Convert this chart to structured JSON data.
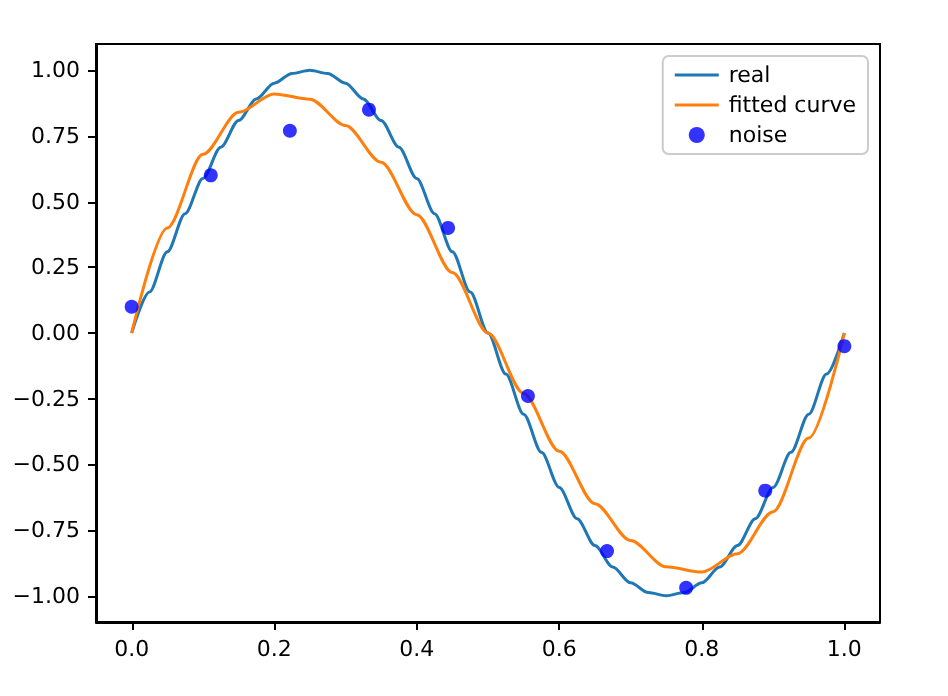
{
  "chart_data": {
    "type": "line",
    "series": [
      {
        "name": "real",
        "color": "#1f77b4",
        "x": [
          0,
          0.025,
          0.05,
          0.075,
          0.1,
          0.125,
          0.15,
          0.175,
          0.2,
          0.225,
          0.25,
          0.275,
          0.3,
          0.325,
          0.35,
          0.375,
          0.4,
          0.425,
          0.45,
          0.475,
          0.5,
          0.525,
          0.55,
          0.575,
          0.6,
          0.625,
          0.65,
          0.675,
          0.7,
          0.725,
          0.75,
          0.775,
          0.8,
          0.825,
          0.85,
          0.875,
          0.9,
          0.925,
          0.95,
          0.975,
          1
        ],
        "values": [
          0,
          0.156,
          0.309,
          0.454,
          0.588,
          0.707,
          0.809,
          0.891,
          0.951,
          0.988,
          1,
          0.988,
          0.951,
          0.891,
          0.809,
          0.707,
          0.588,
          0.454,
          0.309,
          0.156,
          0,
          -0.156,
          -0.309,
          -0.454,
          -0.588,
          -0.707,
          -0.809,
          -0.891,
          -0.951,
          -0.988,
          -1,
          -0.988,
          -0.951,
          -0.891,
          -0.809,
          -0.707,
          -0.588,
          -0.454,
          -0.309,
          -0.156,
          0
        ]
      },
      {
        "name": "fitted curve",
        "color": "#ff7f0e",
        "x": [
          0,
          0.05,
          0.1,
          0.15,
          0.2,
          0.25,
          0.3,
          0.35,
          0.4,
          0.45,
          0.5,
          0.55,
          0.6,
          0.65,
          0.7,
          0.75,
          0.8,
          0.85,
          0.9,
          0.95,
          1
        ],
        "values": [
          0,
          0.4,
          0.68,
          0.84,
          0.91,
          0.89,
          0.79,
          0.65,
          0.45,
          0.23,
          0,
          -0.23,
          -0.45,
          -0.65,
          -0.79,
          -0.89,
          -0.91,
          -0.84,
          -0.68,
          -0.4,
          0
        ]
      },
      {
        "name": "noise",
        "color": "#0000ff",
        "type": "scatter",
        "marker": "circle",
        "x": [
          0,
          0.111,
          0.222,
          0.333,
          0.444,
          0.556,
          0.667,
          0.778,
          0.889,
          1
        ],
        "values": [
          0.1,
          0.6,
          0.77,
          0.85,
          0.4,
          -0.24,
          -0.83,
          -0.97,
          -0.6,
          -0.05
        ]
      }
    ],
    "xlim": [
      -0.05,
      1.05
    ],
    "xticks": [
      {
        "value": 0,
        "label": "0.0"
      },
      {
        "value": 0.2,
        "label": "0.2"
      },
      {
        "value": 0.4,
        "label": "0.4"
      },
      {
        "value": 0.6,
        "label": "0.6"
      },
      {
        "value": 0.8,
        "label": "0.8"
      },
      {
        "value": 1,
        "label": "1.0"
      }
    ],
    "ylim": [
      -1.1,
      1.1
    ],
    "yticks": [
      {
        "value": -1,
        "label": "−1.00"
      },
      {
        "value": -0.75,
        "label": "−0.75"
      },
      {
        "value": -0.5,
        "label": "−0.50"
      },
      {
        "value": -0.25,
        "label": "−0.25"
      },
      {
        "value": 0,
        "label": "0.00"
      },
      {
        "value": 0.25,
        "label": "0.25"
      },
      {
        "value": 0.5,
        "label": "0.50"
      },
      {
        "value": 0.75,
        "label": "0.75"
      },
      {
        "value": 1,
        "label": "1.00"
      }
    ],
    "legend": "top right"
  }
}
